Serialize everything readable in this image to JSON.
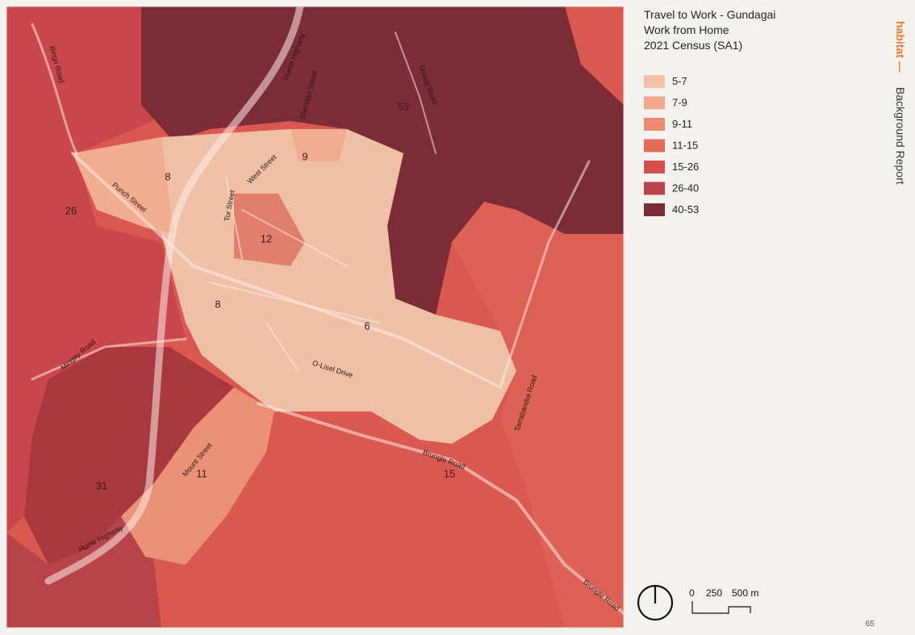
{
  "legend": {
    "title": [
      "Travel to Work - Gundagai",
      "Work from Home",
      "2021 Census (SA1)"
    ],
    "items": [
      {
        "label": "5-7",
        "color": "#f1c1a8"
      },
      {
        "label": "7-9",
        "color": "#f2a68b"
      },
      {
        "label": "9-11",
        "color": "#ec8b73"
      },
      {
        "label": "11-15",
        "color": "#e56b59"
      },
      {
        "label": "15-26",
        "color": "#d4504e"
      },
      {
        "label": "26-40",
        "color": "#b9434a"
      },
      {
        "label": "40-53",
        "color": "#7b2c37"
      }
    ]
  },
  "map": {
    "region_labels": [
      "53",
      "9",
      "8",
      "26",
      "12",
      "8",
      "6",
      "31",
      "11",
      "15"
    ],
    "street_labels": [
      "Hume Highway",
      "Sheridan Street",
      "Gocup Road",
      "Punch Street",
      "West Street",
      "Tor Street",
      "Mingay Road",
      "O-Lisel Drive",
      "Mount Street",
      "Brungle Road",
      "Tarrabandra Road",
      "Hume Highway",
      "Brungle Road",
      "Bingo Road"
    ]
  },
  "scale_bar": {
    "labels": [
      "0",
      "250",
      "500 m"
    ]
  },
  "sidebar": {
    "brand": "habitat —",
    "title": "Background Report"
  },
  "page_number": "65"
}
